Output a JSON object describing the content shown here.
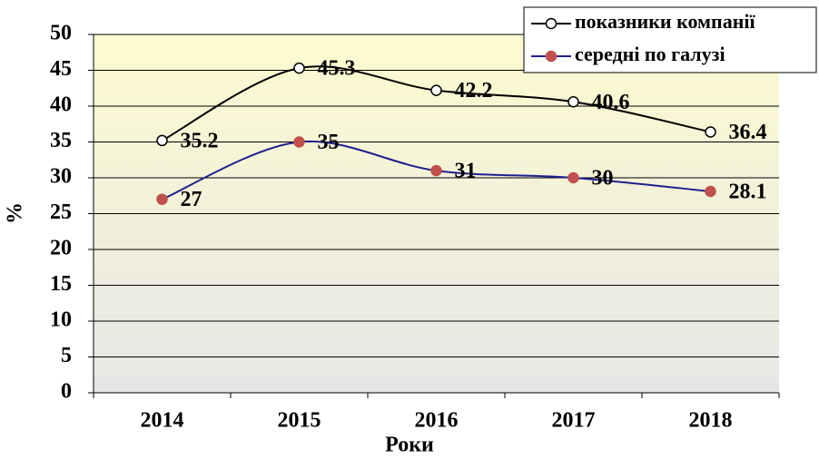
{
  "chart_data": {
    "type": "line",
    "categories": [
      "2014",
      "2015",
      "2016",
      "2017",
      "2018"
    ],
    "series": [
      {
        "name": "показники компанії",
        "color": "#000000",
        "marker_fill": "#ffffff",
        "values": [
          35.2,
          45.3,
          42.2,
          40.6,
          36.4
        ]
      },
      {
        "name": "середні по галузі",
        "color": "#1f1f8f",
        "marker_fill": "#c0504d",
        "values": [
          27,
          35,
          31,
          30,
          28.1
        ]
      }
    ],
    "ylim": [
      0,
      50
    ],
    "yticks": [
      0,
      5,
      10,
      15,
      20,
      25,
      30,
      35,
      40,
      45,
      50
    ],
    "ylabel": "%",
    "xlabel": "Роки",
    "grid": true,
    "legend": "upper right"
  }
}
